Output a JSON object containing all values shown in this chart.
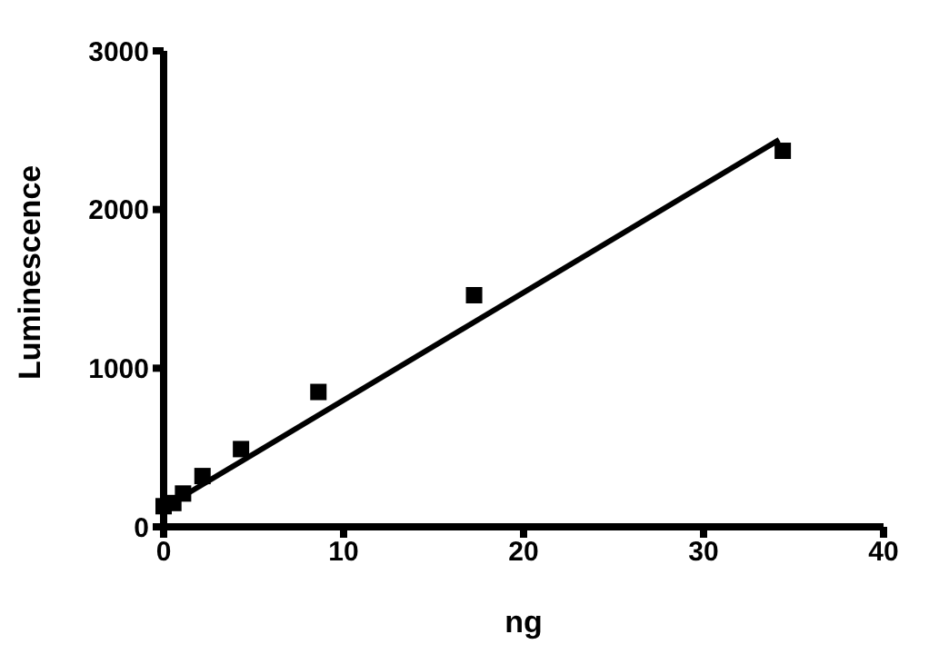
{
  "chart_data": {
    "type": "scatter",
    "xlabel": "ng",
    "ylabel": "Luminescence",
    "xlim": [
      0,
      40
    ],
    "xticks": [
      0,
      10,
      20,
      30,
      40
    ],
    "ylim": [
      0,
      3000
    ],
    "yticks": [
      0,
      1000,
      2000,
      3000
    ],
    "grid": false,
    "legend": false,
    "series": [
      {
        "type": "scatter",
        "color": "#000000",
        "marker": "square",
        "x": [
          0,
          0.54,
          1.08,
          2.16,
          4.3,
          8.6,
          17.25,
          34.4
        ],
        "values": [
          130,
          150,
          210,
          320,
          490,
          850,
          1460,
          2370
        ]
      },
      {
        "type": "line",
        "color": "#000000",
        "marker": "none",
        "line_style": "solid",
        "x": [
          0,
          34.2
        ],
        "values": [
          120,
          2440
        ]
      }
    ]
  }
}
